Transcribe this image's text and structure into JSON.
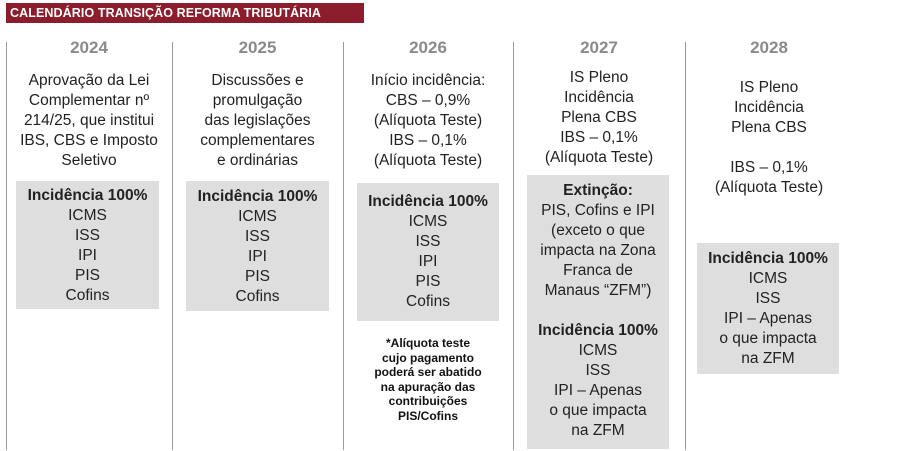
{
  "title": "CALENDÁRIO TRANSIÇÃO REFORMA TRIBUTÁRIA",
  "columns": [
    {
      "year": "2024",
      "desc": [
        "Aprovação da Lei",
        "Complementar nº",
        "214/25, que institui",
        "IBS, CBS e Imposto",
        "Seletivo"
      ],
      "box_heading": "Incidência 100%",
      "box_items": [
        "ICMS",
        "ISS",
        "IPI",
        "PIS",
        "Cofins"
      ]
    },
    {
      "year": "2025",
      "desc": [
        "Discussões e",
        "promulgação",
        "das legislações",
        "complementares",
        "e ordinárias"
      ],
      "box_heading": "Incidência 100%",
      "box_items": [
        "ICMS",
        "ISS",
        "IPI",
        "PIS",
        "Cofins"
      ]
    },
    {
      "year": "2026",
      "desc": [
        "Início incidência:",
        "CBS – 0,9%",
        "(Alíquota Teste)",
        "IBS – 0,1%",
        "(Alíquota Teste)"
      ],
      "box_heading": "Incidência 100%",
      "box_items": [
        "ICMS",
        "ISS",
        "IPI",
        "PIS",
        "Cofins"
      ],
      "note": [
        "*Alíquota teste",
        "cujo pagamento",
        "poderá ser abatido",
        "na apuração das",
        "contribuições",
        "PIS/Cofins"
      ]
    },
    {
      "year": "2027",
      "desc": [
        "IS Pleno",
        "Incidência",
        "Plena CBS",
        "IBS – 0,1%",
        "(Alíquota Teste)"
      ],
      "extinction_heading": "Extinção:",
      "extinction_items": [
        "PIS, Cofins e IPI",
        "(exceto o que",
        "impacta na Zona",
        "Franca de",
        "Manaus “ZFM”)"
      ],
      "box_heading": "Incidência 100%",
      "box_items": [
        "ICMS",
        "ISS",
        "IPI – Apenas",
        "o que impacta",
        "na ZFM"
      ]
    },
    {
      "year": "2028",
      "desc": [
        "IS Pleno",
        "Incidência",
        "Plena CBS",
        "",
        "IBS – 0,1%",
        "(Alíquota Teste)"
      ],
      "box_heading": "Incidência 100%",
      "box_items": [
        "ICMS",
        "ISS",
        "IPI – Apenas",
        "o que impacta",
        "na ZFM"
      ]
    }
  ]
}
